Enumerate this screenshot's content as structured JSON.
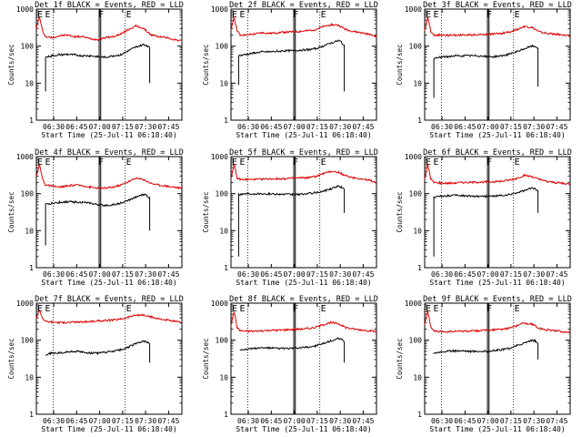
{
  "figure": {
    "xlabel": "Start Time (25-Jul-11 06:18:40)",
    "ylabel": "Counts/sec",
    "x_tick_labels": [
      "06:30",
      "06:45",
      "07:00",
      "07:15",
      "07:30",
      "07:45"
    ],
    "y_tick_labels": [
      "1",
      "10",
      "100",
      "1000"
    ],
    "marker_letters": [
      "E",
      "F",
      "E"
    ],
    "colors": {
      "events": "#000000",
      "lld": "#dd0000",
      "axis": "#000000",
      "background": "#ffffff"
    }
  },
  "chart_data": [
    {
      "type": "line",
      "title": "Det 1f BLACK = Events, RED = LLD",
      "xlabel": "Start Time (25-Jul-11 06:18:40)",
      "ylabel": "Counts/sec",
      "x_unit": "minutes after 06:18:40",
      "ylog": true,
      "ylim": [
        1,
        1000
      ],
      "xlim": [
        0,
        95
      ],
      "vlines_dotted": [
        11,
        58
      ],
      "vlines_solid": [
        41,
        42
      ],
      "series": [
        {
          "name": "LLD",
          "color": "#dd0000",
          "x": [
            0,
            2,
            4,
            6,
            10,
            15,
            20,
            25,
            30,
            35,
            40,
            45,
            50,
            55,
            60,
            65,
            70,
            75,
            80,
            85,
            90,
            95
          ],
          "y": [
            300,
            620,
            260,
            180,
            170,
            190,
            200,
            180,
            180,
            160,
            150,
            170,
            180,
            210,
            280,
            350,
            300,
            200,
            180,
            170,
            150,
            140
          ]
        },
        {
          "name": "Events",
          "color": "#000000",
          "x": [
            6,
            6,
            10,
            15,
            20,
            25,
            30,
            35,
            40,
            45,
            50,
            55,
            60,
            65,
            70,
            72,
            74,
            74
          ],
          "y": [
            6,
            50,
            55,
            58,
            60,
            58,
            55,
            55,
            52,
            50,
            55,
            58,
            75,
            95,
            110,
            105,
            90,
            10
          ]
        }
      ]
    },
    {
      "type": "line",
      "title": "Det 2f BLACK = Events, RED = LLD",
      "xlabel": "Start Time (25-Jul-11 06:18:40)",
      "ylabel": "Counts/sec",
      "x_unit": "minutes after 06:18:40",
      "ylog": true,
      "ylim": [
        1,
        1000
      ],
      "xlim": [
        0,
        95
      ],
      "vlines_dotted": [
        11,
        58
      ],
      "vlines_solid": [
        41,
        42
      ],
      "series": [
        {
          "name": "LLD",
          "color": "#dd0000",
          "x": [
            0,
            2,
            4,
            6,
            10,
            15,
            20,
            25,
            30,
            35,
            40,
            45,
            50,
            55,
            60,
            65,
            70,
            75,
            80,
            85,
            90,
            95
          ],
          "y": [
            250,
            620,
            260,
            200,
            200,
            210,
            230,
            220,
            230,
            240,
            240,
            250,
            260,
            280,
            330,
            380,
            370,
            280,
            250,
            230,
            210,
            180
          ]
        },
        {
          "name": "Events",
          "color": "#000000",
          "x": [
            5,
            5,
            10,
            15,
            20,
            25,
            30,
            35,
            40,
            45,
            50,
            55,
            60,
            65,
            70,
            72,
            74,
            74
          ],
          "y": [
            9,
            55,
            60,
            65,
            70,
            70,
            72,
            75,
            75,
            78,
            80,
            85,
            100,
            120,
            140,
            130,
            100,
            6
          ]
        }
      ]
    },
    {
      "type": "line",
      "title": "Det 3f BLACK = Events, RED = LLD",
      "xlabel": "Start Time (25-Jul-11 06:18:40)",
      "ylabel": "Counts/sec",
      "x_unit": "minutes after 06:18:40",
      "ylog": true,
      "ylim": [
        1,
        1000
      ],
      "xlim": [
        0,
        95
      ],
      "vlines_dotted": [
        11,
        58
      ],
      "vlines_solid": [
        41,
        42
      ],
      "series": [
        {
          "name": "LLD",
          "color": "#dd0000",
          "x": [
            0,
            2,
            4,
            6,
            10,
            15,
            20,
            25,
            30,
            35,
            40,
            45,
            50,
            55,
            60,
            65,
            70,
            75,
            80,
            85,
            90,
            95
          ],
          "y": [
            250,
            620,
            250,
            200,
            200,
            195,
            200,
            200,
            200,
            205,
            210,
            215,
            220,
            240,
            280,
            340,
            320,
            240,
            220,
            210,
            200,
            190
          ]
        },
        {
          "name": "Events",
          "color": "#000000",
          "x": [
            6,
            6,
            10,
            15,
            20,
            25,
            30,
            35,
            40,
            45,
            50,
            55,
            60,
            65,
            70,
            72,
            74,
            74
          ],
          "y": [
            4,
            45,
            50,
            52,
            55,
            55,
            55,
            55,
            52,
            52,
            55,
            60,
            70,
            85,
            100,
            98,
            90,
            8
          ]
        }
      ]
    },
    {
      "type": "line",
      "title": "Det 4f BLACK = Events, RED = LLD",
      "xlabel": "Start Time (25-Jul-11 06:18:40)",
      "ylabel": "Counts/sec",
      "x_unit": "minutes after 06:18:40",
      "ylog": true,
      "ylim": [
        1,
        1000
      ],
      "xlim": [
        0,
        95
      ],
      "vlines_dotted": [
        11,
        58
      ],
      "vlines_solid": [
        41,
        42
      ],
      "series": [
        {
          "name": "LLD",
          "color": "#dd0000",
          "x": [
            0,
            2,
            4,
            6,
            10,
            15,
            20,
            25,
            30,
            35,
            40,
            45,
            50,
            55,
            60,
            65,
            70,
            75,
            80,
            85,
            90,
            95
          ],
          "y": [
            300,
            620,
            250,
            170,
            160,
            150,
            160,
            170,
            165,
            150,
            140,
            140,
            150,
            170,
            210,
            260,
            240,
            190,
            170,
            160,
            150,
            140
          ]
        },
        {
          "name": "Events",
          "color": "#000000",
          "x": [
            6,
            6,
            10,
            15,
            20,
            25,
            30,
            35,
            40,
            45,
            50,
            55,
            60,
            65,
            70,
            72,
            74,
            74
          ],
          "y": [
            4,
            50,
            55,
            58,
            60,
            60,
            58,
            55,
            50,
            48,
            50,
            55,
            65,
            80,
            95,
            90,
            75,
            10
          ]
        }
      ]
    },
    {
      "type": "line",
      "title": "Det 5f BLACK = Events, RED = LLD",
      "xlabel": "Start Time (25-Jul-11 06:18:40)",
      "ylabel": "Counts/sec",
      "x_unit": "minutes after 06:18:40",
      "ylog": true,
      "ylim": [
        1,
        1000
      ],
      "xlim": [
        0,
        95
      ],
      "vlines_dotted": [
        11,
        58
      ],
      "vlines_solid": [
        41,
        42
      ],
      "series": [
        {
          "name": "LLD",
          "color": "#dd0000",
          "x": [
            0,
            2,
            4,
            6,
            10,
            15,
            20,
            25,
            30,
            35,
            40,
            45,
            50,
            55,
            60,
            65,
            70,
            75,
            80,
            85,
            90,
            95
          ],
          "y": [
            250,
            620,
            260,
            240,
            240,
            240,
            245,
            250,
            250,
            255,
            260,
            265,
            270,
            290,
            340,
            400,
            380,
            300,
            270,
            250,
            230,
            200
          ]
        },
        {
          "name": "Events",
          "color": "#000000",
          "x": [
            5,
            5,
            10,
            15,
            20,
            25,
            30,
            35,
            40,
            45,
            50,
            55,
            60,
            65,
            70,
            72,
            74,
            74
          ],
          "y": [
            2,
            95,
            100,
            100,
            100,
            98,
            98,
            95,
            95,
            95,
            100,
            105,
            115,
            135,
            160,
            150,
            130,
            30
          ]
        }
      ]
    },
    {
      "type": "line",
      "title": "Det 6f BLACK = Events, RED = LLD",
      "xlabel": "Start Time (25-Jul-11 06:18:40)",
      "ylabel": "Counts/sec",
      "x_unit": "minutes after 06:18:40",
      "ylog": true,
      "ylim": [
        1,
        1000
      ],
      "xlim": [
        0,
        95
      ],
      "vlines_dotted": [
        11,
        58
      ],
      "vlines_solid": [
        41,
        42
      ],
      "series": [
        {
          "name": "LLD",
          "color": "#dd0000",
          "x": [
            0,
            2,
            4,
            6,
            10,
            15,
            20,
            25,
            30,
            35,
            40,
            45,
            50,
            55,
            60,
            65,
            70,
            75,
            80,
            85,
            90,
            95
          ],
          "y": [
            250,
            620,
            250,
            200,
            195,
            190,
            195,
            200,
            200,
            205,
            205,
            210,
            215,
            230,
            260,
            310,
            290,
            240,
            210,
            200,
            190,
            180
          ]
        },
        {
          "name": "Events",
          "color": "#000000",
          "x": [
            6,
            6,
            10,
            15,
            20,
            25,
            30,
            35,
            40,
            45,
            50,
            55,
            60,
            65,
            70,
            72,
            74,
            74
          ],
          "y": [
            2,
            80,
            85,
            88,
            90,
            88,
            85,
            85,
            85,
            85,
            88,
            92,
            105,
            120,
            140,
            135,
            120,
            30
          ]
        }
      ]
    },
    {
      "type": "line",
      "title": "Det 7f BLACK = Events, RED = LLD",
      "xlabel": "Start Time (25-Jul-11 06:18:40)",
      "ylabel": "Counts/sec",
      "x_unit": "minutes after 06:18:40",
      "ylog": true,
      "ylim": [
        1,
        1000
      ],
      "xlim": [
        0,
        95
      ],
      "vlines_dotted": [
        11,
        58
      ],
      "vlines_solid": [],
      "series": [
        {
          "name": "LLD",
          "color": "#dd0000",
          "x": [
            0,
            2,
            4,
            6,
            10,
            15,
            20,
            25,
            30,
            35,
            40,
            45,
            50,
            55,
            60,
            65,
            70,
            75,
            80,
            85,
            90,
            95
          ],
          "y": [
            400,
            650,
            400,
            320,
            310,
            300,
            300,
            310,
            310,
            320,
            330,
            340,
            350,
            370,
            420,
            480,
            470,
            420,
            380,
            350,
            320,
            300
          ]
        },
        {
          "name": "Events",
          "color": "#000000",
          "x": [
            6,
            6,
            10,
            15,
            20,
            25,
            30,
            35,
            40,
            45,
            50,
            55,
            60,
            65,
            70,
            72,
            74,
            74
          ],
          "y": [
            40,
            40,
            45,
            45,
            48,
            50,
            48,
            45,
            45,
            47,
            50,
            55,
            65,
            80,
            95,
            90,
            80,
            25
          ]
        }
      ]
    },
    {
      "type": "line",
      "title": "Det 8f BLACK = Events, RED = LLD",
      "xlabel": "Start Time (25-Jul-11 06:18:40)",
      "ylabel": "Counts/sec",
      "x_unit": "minutes after 06:18:40",
      "ylog": true,
      "ylim": [
        1,
        1000
      ],
      "xlim": [
        0,
        95
      ],
      "vlines_dotted": [
        11,
        58
      ],
      "vlines_solid": [
        41,
        42
      ],
      "series": [
        {
          "name": "LLD",
          "color": "#dd0000",
          "x": [
            0,
            2,
            4,
            6,
            10,
            15,
            20,
            25,
            30,
            35,
            40,
            45,
            50,
            55,
            60,
            65,
            70,
            75,
            80,
            85,
            90,
            95
          ],
          "y": [
            250,
            600,
            220,
            180,
            175,
            175,
            180,
            185,
            185,
            190,
            195,
            200,
            205,
            220,
            260,
            300,
            280,
            220,
            200,
            190,
            180,
            170
          ]
        },
        {
          "name": "Events",
          "color": "#000000",
          "x": [
            6,
            6,
            10,
            15,
            20,
            25,
            30,
            35,
            40,
            45,
            50,
            55,
            60,
            65,
            70,
            72,
            74,
            74
          ],
          "y": [
            55,
            55,
            58,
            60,
            62,
            62,
            60,
            60,
            60,
            62,
            65,
            70,
            80,
            95,
            110,
            105,
            90,
            25
          ]
        }
      ]
    },
    {
      "type": "line",
      "title": "Det 9f BLACK = Events, RED = LLD",
      "xlabel": "Start Time (25-Jul-11 06:18:40)",
      "ylabel": "Counts/sec",
      "x_unit": "minutes after 06:18:40",
      "ylog": true,
      "ylim": [
        1,
        1000
      ],
      "xlim": [
        0,
        95
      ],
      "vlines_dotted": [
        11,
        58
      ],
      "vlines_solid": [
        41,
        42
      ],
      "series": [
        {
          "name": "LLD",
          "color": "#dd0000",
          "x": [
            0,
            2,
            4,
            6,
            10,
            15,
            20,
            25,
            30,
            35,
            40,
            45,
            50,
            55,
            60,
            65,
            70,
            75,
            80,
            85,
            90,
            95
          ],
          "y": [
            280,
            620,
            230,
            175,
            170,
            170,
            175,
            175,
            175,
            180,
            185,
            190,
            195,
            210,
            250,
            290,
            270,
            210,
            190,
            180,
            170,
            160
          ]
        },
        {
          "name": "Events",
          "color": "#000000",
          "x": [
            6,
            6,
            10,
            15,
            20,
            25,
            30,
            35,
            40,
            45,
            50,
            55,
            60,
            65,
            70,
            72,
            74,
            74
          ],
          "y": [
            45,
            45,
            48,
            50,
            52,
            52,
            50,
            50,
            50,
            52,
            55,
            60,
            70,
            85,
            100,
            95,
            80,
            30
          ]
        }
      ]
    }
  ]
}
